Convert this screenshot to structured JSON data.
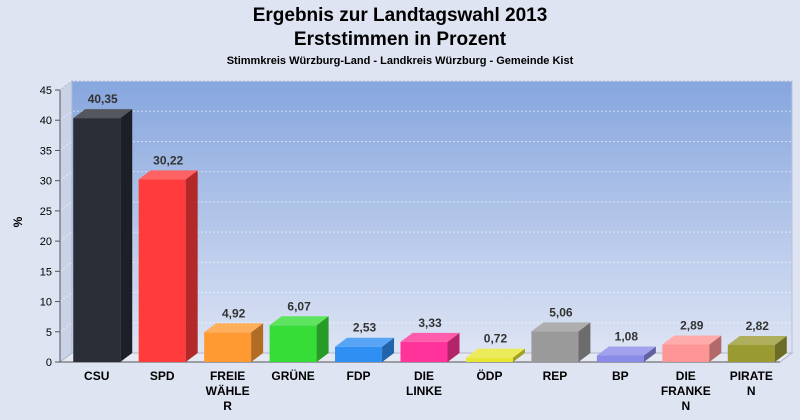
{
  "chart_data": {
    "type": "bar",
    "title": "Ergebnis zur Landtagswahl 2013",
    "subtitle": "Erststimmen in Prozent",
    "region": "Stimmkreis Würzburg-Land - Landkreis Würzburg - Gemeinde Kist",
    "ylabel": "%",
    "ylim": [
      0,
      45
    ],
    "yticks": [
      0,
      5,
      10,
      15,
      20,
      25,
      30,
      35,
      40,
      45
    ],
    "grid": true,
    "categories": [
      [
        "CSU"
      ],
      [
        "SPD"
      ],
      [
        "FREIE",
        "WÄHLE",
        "R"
      ],
      [
        "GRÜNE"
      ],
      [
        "FDP"
      ],
      [
        "DIE",
        "LINKE"
      ],
      [
        "ÖDP"
      ],
      [
        "REP"
      ],
      [
        "BP"
      ],
      [
        "DIE",
        "FRANKE",
        "N"
      ],
      [
        "PIRATE",
        "N"
      ]
    ],
    "values": [
      40.35,
      30.22,
      4.92,
      6.07,
      2.53,
      3.33,
      0.72,
      5.06,
      1.08,
      2.89,
      2.82
    ],
    "value_labels": [
      "40,35",
      "30,22",
      "4,92",
      "6,07",
      "2,53",
      "3,33",
      "0,72",
      "5,06",
      "1,08",
      "2,89",
      "2,82"
    ],
    "colors": [
      "#2a2d36",
      "#ff3b3b",
      "#ff9a33",
      "#36dd36",
      "#2f8ff2",
      "#ff3399",
      "#e6e633",
      "#9a9a9a",
      "#8a8ae8",
      "#ff9696",
      "#9a9a33"
    ],
    "background_colors": {
      "plot_top": "#86a6de",
      "plot_bottom": "#dde4f4",
      "page": "#dfe4f2"
    }
  }
}
